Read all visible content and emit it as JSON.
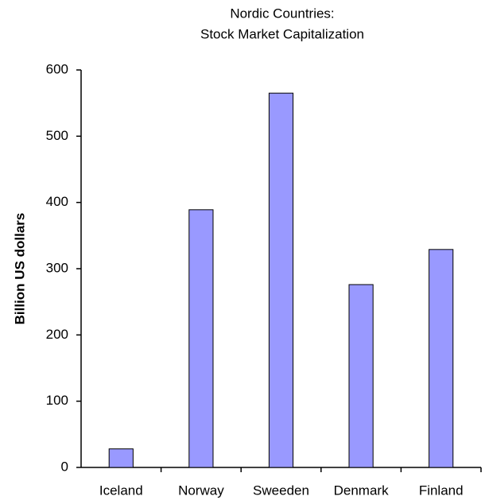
{
  "chart_data": {
    "type": "bar",
    "title": [
      "Nordic Countries:",
      "Stock Market Capitalization"
    ],
    "y_label": "Billion US dollars",
    "categories": [
      "Iceland",
      "Norway",
      "Sweeden",
      "Denmark",
      "Finland"
    ],
    "values": [
      28,
      389,
      565,
      276,
      329
    ],
    "color": "#9999ff",
    "ylim": [
      0,
      600
    ],
    "yticks": [
      0,
      100,
      200,
      300,
      400,
      500,
      600
    ],
    "grid": false
  }
}
